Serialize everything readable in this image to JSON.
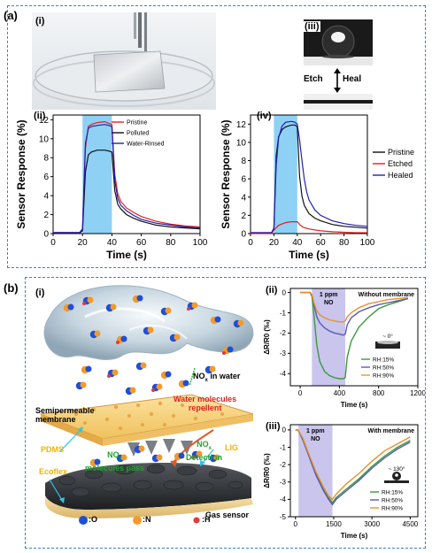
{
  "panels": {
    "a": {
      "label": "(a)",
      "i": {
        "label": "(i)"
      },
      "ii": {
        "label": "(ii)"
      },
      "iii": {
        "label": "(iii)",
        "etch": "Etch",
        "heal": "Heal"
      },
      "iv": {
        "label": "(iv)"
      }
    },
    "b": {
      "label": "(b)",
      "i": {
        "label": "(i)",
        "nox_water": "NO",
        "nox_water_sub": "x",
        "nox_water_rest": " in water",
        "water_repel_1": "Water molecules",
        "water_repel_2": "repellent",
        "semi_1": "Semipermeable",
        "semi_2": "membrane",
        "pdms": "PDMS",
        "nox_pass_1": "NO",
        "nox_pass_sub": "x",
        "nox_pass_2": "molecules pass",
        "detect_1": "NO",
        "detect_sub": "x",
        "detect_2": "Detection",
        "lig": "LIG",
        "ecoflex": "Ecoflex",
        "gas_sensor": "Gas sensor",
        "legend_o": ":O",
        "legend_n": ":N",
        "legend_h": ":H"
      },
      "ii": {
        "label": "(ii)"
      },
      "iii": {
        "label": "(iii)"
      }
    }
  },
  "chart_data": [
    {
      "id": "a-ii",
      "type": "line",
      "xlabel": "Time (s)",
      "ylabel": "Sensor Response (%)",
      "xlim": [
        0,
        100
      ],
      "ylim": [
        0,
        12.5
      ],
      "xticks": [
        0,
        20,
        40,
        60,
        80,
        100
      ],
      "yticks": [
        0,
        2,
        4,
        6,
        8,
        10,
        12
      ],
      "highlight": [
        20,
        40
      ],
      "series": [
        {
          "name": "Pristine",
          "color": "#e02020",
          "x": [
            0,
            18,
            20,
            22,
            24,
            26,
            30,
            35,
            38,
            40,
            42,
            44,
            46,
            50,
            55,
            60,
            70,
            80,
            90,
            100
          ],
          "y": [
            0.1,
            0.1,
            0.4,
            9,
            11.3,
            11.5,
            11.7,
            11.8,
            11.6,
            11.5,
            6.2,
            4.2,
            3.4,
            2.7,
            2.2,
            1.8,
            1.3,
            1.0,
            0.8,
            0.7
          ]
        },
        {
          "name": "Polluted",
          "color": "#111111",
          "x": [
            0,
            18,
            20,
            22,
            24,
            26,
            30,
            35,
            38,
            40,
            42,
            44,
            46,
            50,
            55,
            60,
            70,
            80,
            90,
            100
          ],
          "y": [
            0.05,
            0.05,
            0.3,
            6.5,
            8.3,
            8.6,
            8.8,
            8.8,
            8.7,
            8.6,
            4.5,
            3.1,
            2.6,
            2.0,
            1.6,
            1.3,
            0.9,
            0.7,
            0.6,
            0.5
          ]
        },
        {
          "name": "Water-Rinsed",
          "color": "#2020b0",
          "x": [
            0,
            18,
            20,
            22,
            24,
            26,
            30,
            35,
            38,
            40,
            42,
            44,
            46,
            50,
            55,
            60,
            70,
            80,
            90,
            100
          ],
          "y": [
            0.1,
            0.1,
            0.5,
            9.5,
            11.1,
            11.3,
            11.4,
            11.5,
            11.4,
            11.3,
            5.6,
            3.7,
            3.0,
            2.4,
            1.9,
            1.5,
            1.1,
            0.9,
            0.7,
            0.6
          ]
        }
      ]
    },
    {
      "id": "a-iv",
      "type": "line",
      "xlabel": "Time (s)",
      "ylabel": "Sensor Response (%)",
      "xlim": [
        0,
        100
      ],
      "ylim": [
        0,
        13
      ],
      "xticks": [
        0,
        20,
        40,
        60,
        80,
        100
      ],
      "yticks": [
        0,
        2,
        4,
        6,
        8,
        10,
        12
      ],
      "highlight": [
        20,
        40
      ],
      "series": [
        {
          "name": "Pristine",
          "color": "#111111",
          "x": [
            0,
            18,
            20,
            22,
            24,
            27,
            30,
            35,
            38,
            40,
            42,
            44,
            46,
            50,
            55,
            60,
            70,
            80,
            90,
            100
          ],
          "y": [
            0.1,
            0.1,
            0.6,
            8.5,
            10.6,
            11.4,
            11.7,
            11.9,
            11.9,
            11.7,
            6.3,
            4.1,
            3.1,
            2.2,
            1.7,
            1.4,
            1.0,
            0.8,
            0.7,
            0.6
          ]
        },
        {
          "name": "Etched",
          "color": "#e02020",
          "x": [
            0,
            18,
            20,
            24,
            30,
            35,
            38,
            40,
            42,
            45,
            50,
            60,
            70,
            80,
            90,
            100
          ],
          "y": [
            0.0,
            0.0,
            0.4,
            0.9,
            1.2,
            1.3,
            1.3,
            1.3,
            1.0,
            0.7,
            0.5,
            0.3,
            0.2,
            0.15,
            0.1,
            0.1
          ]
        },
        {
          "name": "Healed",
          "color": "#2020b0",
          "x": [
            0,
            18,
            20,
            22,
            24,
            27,
            30,
            35,
            38,
            40,
            42,
            44,
            46,
            48,
            50,
            55,
            60,
            70,
            80,
            90,
            100
          ],
          "y": [
            0.1,
            0.1,
            0.5,
            7.5,
            10.5,
            11.8,
            12.2,
            12.3,
            12.2,
            12.0,
            10.3,
            8.0,
            6.0,
            4.6,
            3.7,
            2.6,
            2.0,
            1.4,
            1.1,
            0.9,
            0.8
          ]
        }
      ]
    },
    {
      "id": "b-ii",
      "type": "line",
      "xlabel": "Time (s)",
      "ylabel": "ΔR/R0 (‰)",
      "xlim": [
        -100,
        1200
      ],
      "ylim": [
        -4.6,
        0.2
      ],
      "xticks": [
        0,
        400,
        800,
        1200
      ],
      "yticks": [
        0,
        -1,
        -2,
        -3,
        -4
      ],
      "highlight": [
        120,
        460
      ],
      "annotations": [
        "1 ppm",
        "NO",
        "Without membrane",
        "~ 0°"
      ],
      "series": [
        {
          "name": "RH:15%",
          "color": "#3b9a3b",
          "x": [
            0,
            100,
            120,
            140,
            170,
            200,
            250,
            300,
            350,
            400,
            440,
            460,
            480,
            520,
            600,
            700,
            800,
            900,
            1000,
            1100
          ],
          "y": [
            0,
            0,
            -0.2,
            -1.1,
            -2.6,
            -3.4,
            -3.9,
            -4.1,
            -4.2,
            -4.25,
            -4.25,
            -4.2,
            -3.2,
            -2.4,
            -1.7,
            -1.2,
            -0.8,
            -0.6,
            -0.45,
            -0.3
          ]
        },
        {
          "name": "RH:50%",
          "color": "#5a5ab8",
          "x": [
            0,
            100,
            120,
            140,
            170,
            200,
            250,
            300,
            350,
            400,
            440,
            460,
            480,
            520,
            600,
            700,
            800,
            900,
            1000,
            1100
          ],
          "y": [
            0,
            0,
            -0.15,
            -0.6,
            -1.2,
            -1.5,
            -1.75,
            -1.9,
            -2.0,
            -2.05,
            -2.1,
            -2.05,
            -1.6,
            -1.25,
            -0.95,
            -0.75,
            -0.6,
            -0.5,
            -0.4,
            -0.3
          ]
        },
        {
          "name": "RH:90%",
          "color": "#e8922a",
          "x": [
            0,
            100,
            120,
            140,
            170,
            200,
            250,
            300,
            350,
            400,
            440,
            460,
            480,
            520,
            600,
            700,
            800,
            900,
            1000,
            1100
          ],
          "y": [
            0,
            0,
            -0.1,
            -0.5,
            -0.9,
            -1.1,
            -1.25,
            -1.35,
            -1.4,
            -1.45,
            -1.45,
            -1.4,
            -1.2,
            -1.0,
            -0.75,
            -0.55,
            -0.45,
            -0.35,
            -0.3,
            -0.25
          ]
        }
      ]
    },
    {
      "id": "b-iii",
      "type": "line",
      "xlabel": "Time (s)",
      "ylabel": "ΔR/R0 (‰)",
      "xlim": [
        -200,
        4800
      ],
      "ylim": [
        -5,
        0.3
      ],
      "xticks": [
        0,
        1500,
        3000,
        4500
      ],
      "yticks": [
        0,
        -1,
        -2,
        -3,
        -4,
        -5
      ],
      "highlight": [
        120,
        1450
      ],
      "annotations": [
        "1 ppm",
        "NO",
        "With membrane",
        "~ 130°"
      ],
      "series": [
        {
          "name": "RH:15%",
          "color": "#3b9a3b",
          "x": [
            0,
            100,
            300,
            500,
            800,
            1100,
            1300,
            1450,
            1600,
            2000,
            2500,
            3000,
            3500,
            4000,
            4500
          ],
          "y": [
            0,
            0,
            -0.6,
            -1.4,
            -2.5,
            -3.4,
            -3.9,
            -4.2,
            -3.9,
            -3.4,
            -2.8,
            -2.1,
            -1.5,
            -1.0,
            -0.6
          ]
        },
        {
          "name": "RH:50%",
          "color": "#5a5ab8",
          "x": [
            0,
            100,
            300,
            500,
            800,
            1100,
            1300,
            1450,
            1600,
            2000,
            2500,
            3000,
            3500,
            4000,
            4500
          ],
          "y": [
            0,
            0,
            -0.6,
            -1.4,
            -2.6,
            -3.5,
            -4.0,
            -4.3,
            -4.0,
            -3.5,
            -2.9,
            -2.2,
            -1.6,
            -1.1,
            -0.7
          ]
        },
        {
          "name": "RH:90%",
          "color": "#e8922a",
          "x": [
            0,
            100,
            300,
            500,
            800,
            1100,
            1300,
            1450,
            1600,
            2000,
            2500,
            3000,
            3500,
            4000,
            4500
          ],
          "y": [
            0,
            0,
            -0.5,
            -1.3,
            -2.4,
            -3.3,
            -3.8,
            -4.0,
            -3.7,
            -3.1,
            -2.5,
            -1.8,
            -1.2,
            -0.8,
            -0.4
          ]
        }
      ]
    }
  ]
}
